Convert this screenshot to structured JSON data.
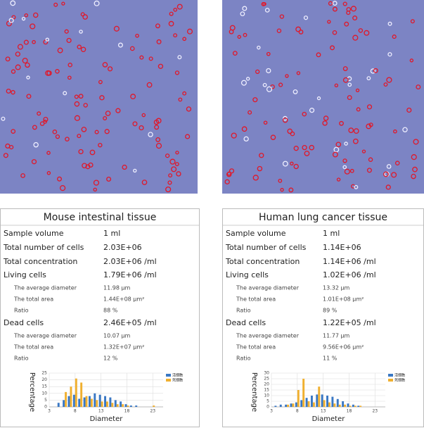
{
  "panels": [
    {
      "title": "Mouse intestinal tissue",
      "summary": [
        [
          "Sample volume",
          "1 ml"
        ],
        [
          "Total number of cells",
          "2.03E+06"
        ],
        [
          "Total concentration",
          "2.03E+06 /ml"
        ]
      ],
      "living": {
        "label": "Living cells",
        "value": "1.79E+06 /ml",
        "details": [
          [
            "The average diameter",
            "11.98 μm"
          ],
          [
            "The total area",
            "1.44E+08 μm²"
          ],
          [
            "Ratio",
            "88 %"
          ]
        ]
      },
      "dead": {
        "label": "Dead cells",
        "value": "2.46E+05 /ml",
        "details": [
          [
            "The average diameter",
            "10.07 μm"
          ],
          [
            "The total area",
            "1.32E+07 μm²"
          ],
          [
            "Ratio",
            "12 %"
          ]
        ]
      }
    },
    {
      "title": "Human lung cancer tissue",
      "summary": [
        [
          "Sample volume",
          "1 ml"
        ],
        [
          "Total number of cells",
          "1.14E+06"
        ],
        [
          "Total concentration",
          "1.14E+06 /ml"
        ]
      ],
      "living": {
        "label": "Living cells",
        "value": "1.02E+06 /ml",
        "details": [
          [
            "The average diameter",
            "13.32 μm"
          ],
          [
            "The total area",
            "1.01E+08 μm²"
          ],
          [
            "Ratio",
            "89 %"
          ]
        ]
      },
      "dead": {
        "label": "Dead cells",
        "value": "1.22E+05 /ml",
        "details": [
          [
            "The average diameter",
            "11.77 μm"
          ],
          [
            "The total area",
            "9.56E+06 μm²"
          ],
          [
            "Ratio",
            "11 %"
          ]
        ]
      }
    }
  ],
  "chart_data": [
    {
      "type": "bar",
      "xlabel": "Diameter",
      "ylabel": "Percentage",
      "x": [
        5,
        6,
        7,
        8,
        9,
        10,
        11,
        12,
        13,
        14,
        15,
        16,
        17,
        18,
        19,
        20,
        21,
        22,
        23
      ],
      "series": [
        {
          "name": "活细胞",
          "color": "#3a78c4",
          "values": [
            3,
            5,
            8,
            9,
            6,
            7,
            8,
            10,
            9,
            8,
            7,
            5,
            4,
            2,
            1,
            1,
            0,
            0,
            0
          ]
        },
        {
          "name": "死细胞",
          "color": "#f0b030",
          "values": [
            0,
            11,
            15,
            21,
            18,
            8,
            6,
            5,
            4,
            4,
            3,
            2,
            2,
            1,
            0,
            0,
            0,
            0,
            1
          ]
        }
      ],
      "xlim": [
        3,
        25
      ],
      "xticks": [
        3,
        8,
        13,
        18,
        23
      ],
      "ylim": [
        0,
        25
      ],
      "yticks": [
        0,
        5,
        10,
        15,
        20,
        25
      ],
      "grid": true,
      "legend": "upper right"
    },
    {
      "type": "bar",
      "xlabel": "Diameter",
      "ylabel": "Percentage",
      "x": [
        4,
        5,
        6,
        7,
        8,
        9,
        10,
        11,
        12,
        13,
        14,
        15,
        16,
        17,
        18,
        19,
        20
      ],
      "series": [
        {
          "name": "活细胞",
          "color": "#3a78c4",
          "values": [
            1,
            2,
            2,
            3,
            4,
            6,
            8,
            10,
            11,
            11,
            10,
            9,
            7,
            5,
            3,
            2,
            1
          ]
        },
        {
          "name": "死细胞",
          "color": "#f0b030",
          "values": [
            0,
            0,
            2,
            3,
            15,
            25,
            5,
            4,
            18,
            6,
            4,
            3,
            2,
            2,
            1,
            1,
            1
          ]
        }
      ],
      "xlim": [
        3,
        25
      ],
      "xticks": [
        3,
        8,
        13,
        18,
        23
      ],
      "ylim": [
        0,
        30
      ],
      "yticks": [
        0,
        5,
        10,
        15,
        20,
        25,
        30
      ],
      "grid": true,
      "legend": "upper right"
    }
  ]
}
